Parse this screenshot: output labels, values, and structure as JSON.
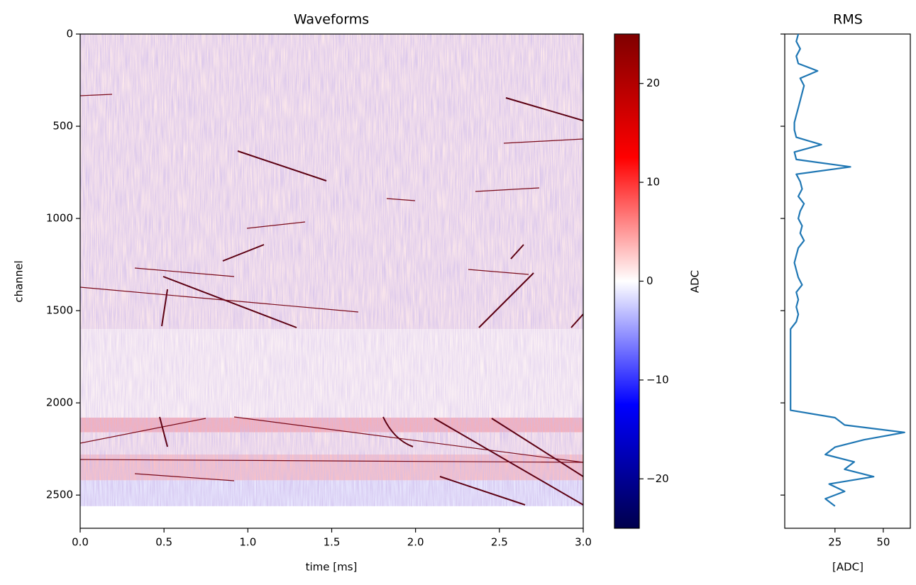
{
  "chart_data": [
    {
      "type": "heatmap",
      "title": "Waveforms",
      "xlabel": "time [ms]",
      "ylabel": "channel",
      "xlim": [
        0,
        3
      ],
      "ylim": [
        2680,
        0
      ],
      "xticks": [
        {
          "value": 0,
          "label": "0.0"
        },
        0.5,
        {
          "value": 1,
          "label": "1.0"
        },
        1.5,
        {
          "value": 2,
          "label": "2.0"
        },
        2.5,
        {
          "value": 3,
          "label": "3.0"
        }
      ],
      "yticks": [
        0,
        500,
        1000,
        1500,
        2000,
        2500
      ],
      "y": [
        0,
        1600,
        2080,
        2160,
        2280,
        2420,
        2560
      ],
      "values": [
        1,
        0.5,
        4,
        1,
        3,
        -1
      ],
      "colorbar": {
        "label": "ADC",
        "lim": [
          -25,
          25
        ],
        "ticks": [
          {
            "value": -20,
            "label": "−20"
          },
          {
            "value": -10,
            "label": "−10"
          },
          0,
          10,
          20
        ],
        "colormap": [
          "#00004c",
          "#0000ff",
          "#ffffff",
          "#ff0000",
          "#7f0000"
        ]
      }
    },
    {
      "type": "line",
      "title": "RMS",
      "xlabel": "[ADC]",
      "xlim": [
        -1,
        64
      ],
      "ylim": [
        2680,
        0
      ],
      "xticks": [
        25,
        50
      ],
      "yticks": [
        0,
        500,
        1000,
        1500,
        2000,
        2500
      ],
      "series": [
        {
          "color": "#1f77b4",
          "y": [
            0,
            40,
            80,
            120,
            160,
            200,
            240,
            280,
            320,
            360,
            400,
            440,
            480,
            520,
            560,
            600,
            640,
            680,
            720,
            760,
            800,
            840,
            880,
            920,
            960,
            1000,
            1040,
            1080,
            1120,
            1160,
            1200,
            1240,
            1280,
            1320,
            1360,
            1400,
            1440,
            1480,
            1520,
            1560,
            1600,
            1640,
            1680,
            1720,
            1760,
            1800,
            1840,
            1880,
            1920,
            1960,
            2000,
            2040,
            2080,
            2120,
            2160,
            2200,
            2240,
            2280,
            2320,
            2360,
            2400,
            2440,
            2480,
            2520,
            2560
          ],
          "x": [
            6,
            5,
            7,
            5,
            6,
            16,
            7,
            9,
            8,
            7,
            6,
            5,
            4,
            4,
            5,
            18,
            4,
            5,
            33,
            5,
            7,
            8,
            6,
            9,
            7,
            6,
            8,
            7,
            9,
            6,
            5,
            4,
            5,
            6,
            8,
            5,
            6,
            5,
            6,
            5,
            2,
            2,
            2,
            2,
            2,
            2,
            2,
            2,
            2,
            2,
            2,
            2,
            25,
            30,
            61,
            40,
            25,
            20,
            35,
            30,
            45,
            22,
            30,
            20,
            25
          ]
        }
      ]
    }
  ]
}
